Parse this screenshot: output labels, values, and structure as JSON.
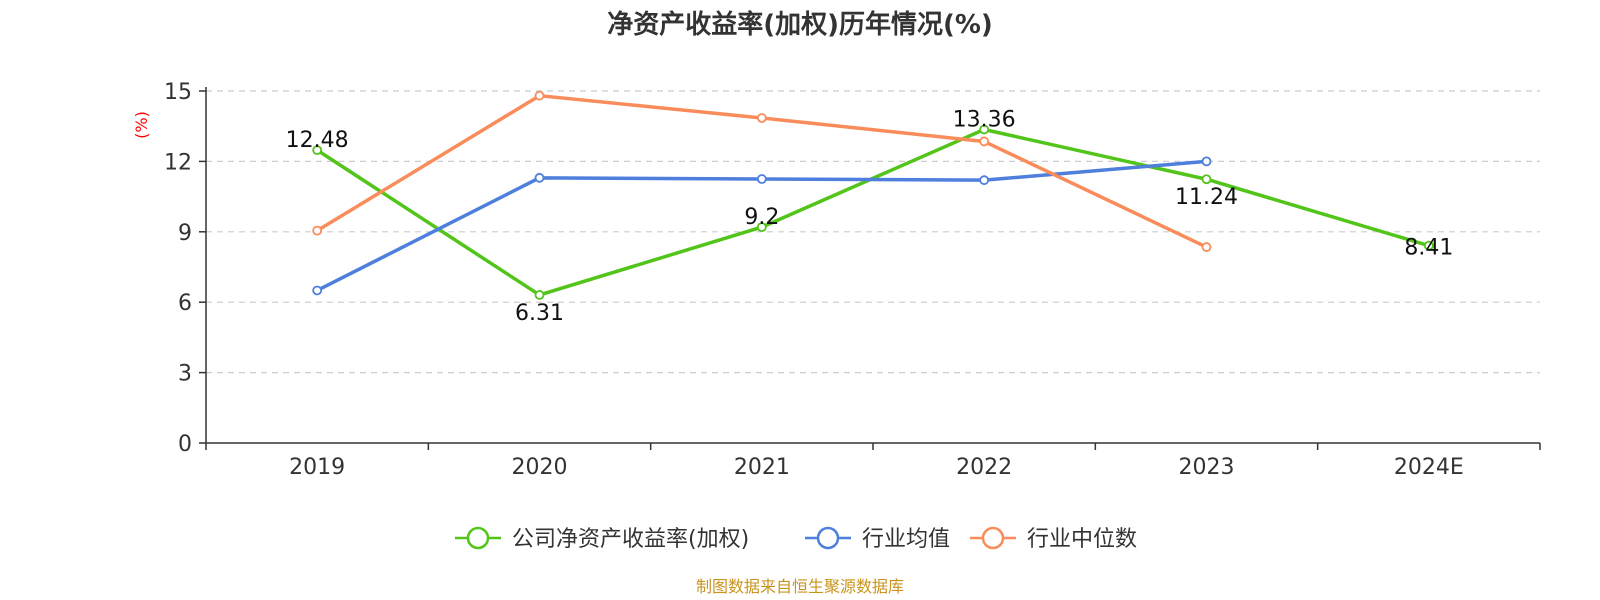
{
  "chart_data": {
    "type": "line",
    "title": "净资产收益率(加权)历年情况(%)",
    "xlabel": "",
    "ylabel": "(%)",
    "categories": [
      "2019",
      "2020",
      "2021",
      "2022",
      "2023",
      "2024E"
    ],
    "ylim": [
      0,
      15
    ],
    "yticks": [
      0,
      3,
      6,
      9,
      12,
      15
    ],
    "grid": true,
    "legend_position": "bottom-center",
    "series": [
      {
        "name": "公司净资产收益率(加权)",
        "color": "#52c41a",
        "values": [
          12.48,
          6.31,
          9.2,
          13.36,
          11.24,
          8.41
        ],
        "labels": [
          "12.48",
          "6.31",
          "9.2",
          "13.36",
          "11.24",
          "8.41"
        ]
      },
      {
        "name": "行业均值",
        "color": "#4e7fdc",
        "values": [
          6.5,
          11.3,
          11.25,
          11.2,
          12.0,
          null
        ]
      },
      {
        "name": "行业中位数",
        "color": "#f98c5a",
        "values": [
          9.05,
          14.8,
          13.85,
          12.85,
          8.35,
          null
        ]
      }
    ]
  },
  "source_text": "制图数据来自恒生聚源数据库",
  "colors": {
    "source": "#c8941e",
    "ylabel": "#ff0000",
    "axis": "#333333",
    "grid": "#cccccc"
  }
}
